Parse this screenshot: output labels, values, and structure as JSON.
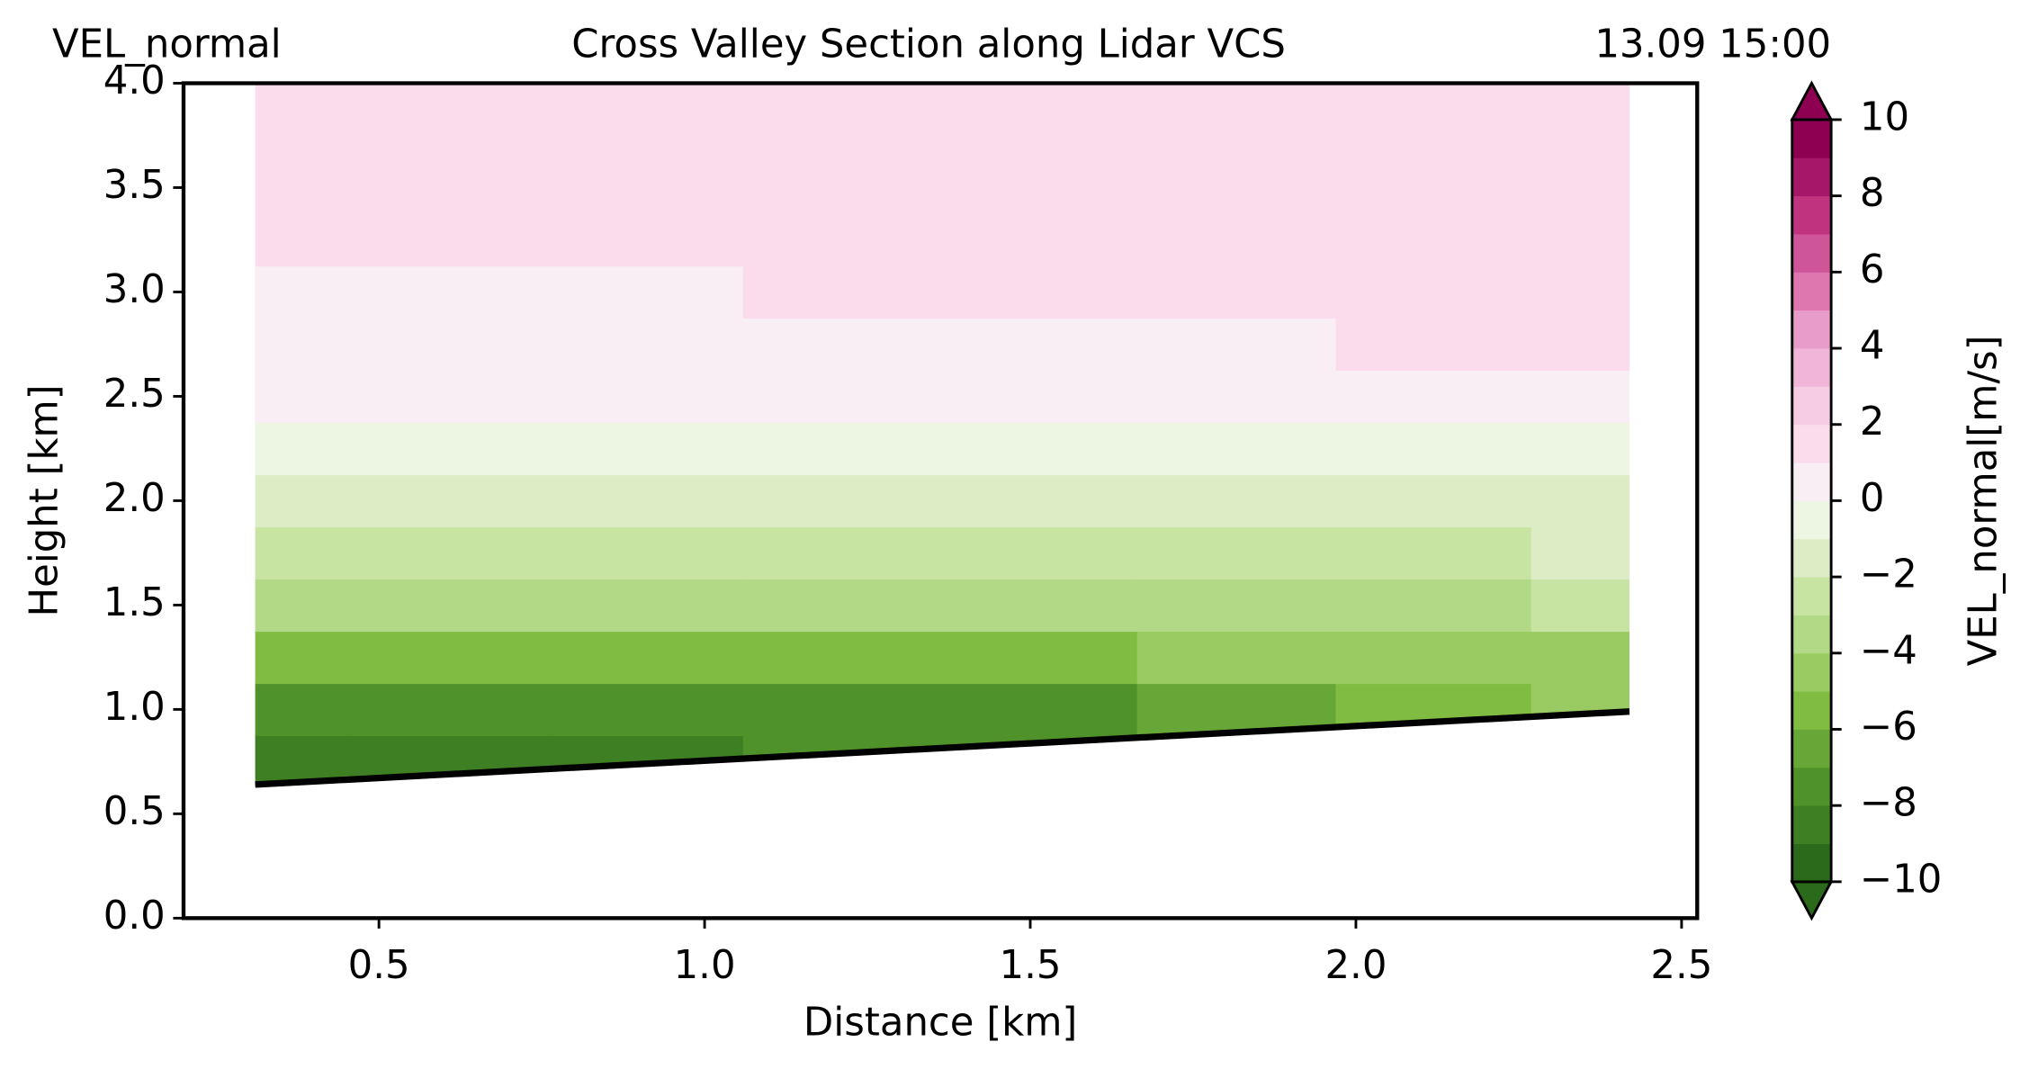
{
  "chart_data": {
    "type": "contour",
    "title": "Cross Valley Section along Lidar VCS",
    "left_title": "VEL_normal",
    "right_title": "13.09 15:00",
    "x_label": "Distance [km]",
    "y_label": "Height [km]",
    "xlim": [
      0.2,
      2.524
    ],
    "ylim": [
      0,
      4
    ],
    "xticks": [
      0.5,
      {
        "value": 1,
        "label": "1.0"
      },
      1.5,
      {
        "value": 2,
        "label": "2.0"
      },
      2.5
    ],
    "yticks": [
      {
        "value": 0,
        "label": "0.0"
      },
      0.5,
      {
        "value": 1,
        "label": "1.0"
      },
      1.5,
      {
        "value": 2,
        "label": "2.0"
      },
      2.5,
      {
        "value": 3,
        "label": "3.0"
      },
      3.5,
      {
        "value": 4,
        "label": "4.0"
      }
    ],
    "field": {
      "x": [
        0.31,
        0.61,
        0.91,
        1.21,
        1.51,
        1.82,
        2.12,
        2.42
      ],
      "heights": [
        0.75,
        1,
        1.25,
        1.5,
        1.75,
        2,
        2.25,
        2.5,
        2.75,
        3,
        3.25,
        3.5,
        3.75,
        4
      ],
      "values": [
        [
          -9,
          -8,
          -5.5,
          -4,
          -2.5,
          -1.5,
          -0.5,
          0.5,
          0.5,
          0.8,
          1.5,
          1.5,
          1.5,
          1.5
        ],
        [
          -9,
          -8,
          -5.5,
          -4,
          -2.5,
          -1.5,
          -0.5,
          0.5,
          0.5,
          0.8,
          1.5,
          1.5,
          1.5,
          1.5
        ],
        [
          -8.5,
          -7.5,
          -5.5,
          -3.8,
          -2.5,
          -1.5,
          -0.5,
          0.5,
          0.5,
          0.8,
          1.5,
          1.5,
          1.5,
          1.5
        ],
        [
          -8,
          -7.5,
          -5.5,
          -3.8,
          -2.5,
          -1.5,
          -0.5,
          0.5,
          0.6,
          1.2,
          1.5,
          1.5,
          1.5,
          1.5
        ],
        [
          -7.5,
          -7.5,
          -5.5,
          -3.5,
          -2.5,
          -1.5,
          -0.8,
          0.5,
          0.8,
          1.5,
          1.5,
          1.5,
          1.5,
          1.5
        ],
        [
          null,
          -6.5,
          -5,
          -3.5,
          -2.5,
          -1.5,
          -0.8,
          0.5,
          0.8,
          1.5,
          1.5,
          1.5,
          1.5,
          1.5
        ],
        [
          null,
          -5.5,
          -5,
          -3.2,
          -2.2,
          -1.5,
          -0.8,
          0.5,
          1.2,
          1.5,
          1.5,
          1.5,
          1.5,
          1.5
        ],
        [
          null,
          -5,
          -4.5,
          -3,
          -2,
          -1.5,
          -0.5,
          0.5,
          1.5,
          1.5,
          1.5,
          1.5,
          1.5,
          1.5
        ]
      ]
    },
    "terrain": {
      "x": [
        0.31,
        2.42
      ],
      "height": [
        0.64,
        0.99
      ]
    },
    "colorbar": {
      "label": "VEL_normal[m/s]",
      "extend": "both",
      "levels": [
        -10,
        -9,
        -8,
        -7,
        -6,
        -5,
        -4,
        -3,
        -2,
        -1,
        0,
        1,
        2,
        3,
        4,
        5,
        6,
        7,
        8,
        9,
        10
      ],
      "colors": [
        "#2c6a1b",
        "#3d7f22",
        "#4f9229",
        "#67a737",
        "#7fbc41",
        "#99cb62",
        "#b2d986",
        "#c8e4a3",
        "#dcedc6",
        "#edf5e3",
        "#f8eef3",
        "#fadcec",
        "#f6cbe4",
        "#f1b5d9",
        "#e89cc9",
        "#de77b0",
        "#cf5599",
        "#c0337f",
        "#a6176a",
        "#8e0152"
      ],
      "ticks": [
        {
          "value": -10,
          "label": "−10"
        },
        {
          "value": -8,
          "label": "−8"
        },
        {
          "value": -6,
          "label": "−6"
        },
        {
          "value": -4,
          "label": "−4"
        },
        {
          "value": -2,
          "label": "−2"
        },
        0,
        2,
        4,
        6,
        8,
        10
      ]
    }
  }
}
